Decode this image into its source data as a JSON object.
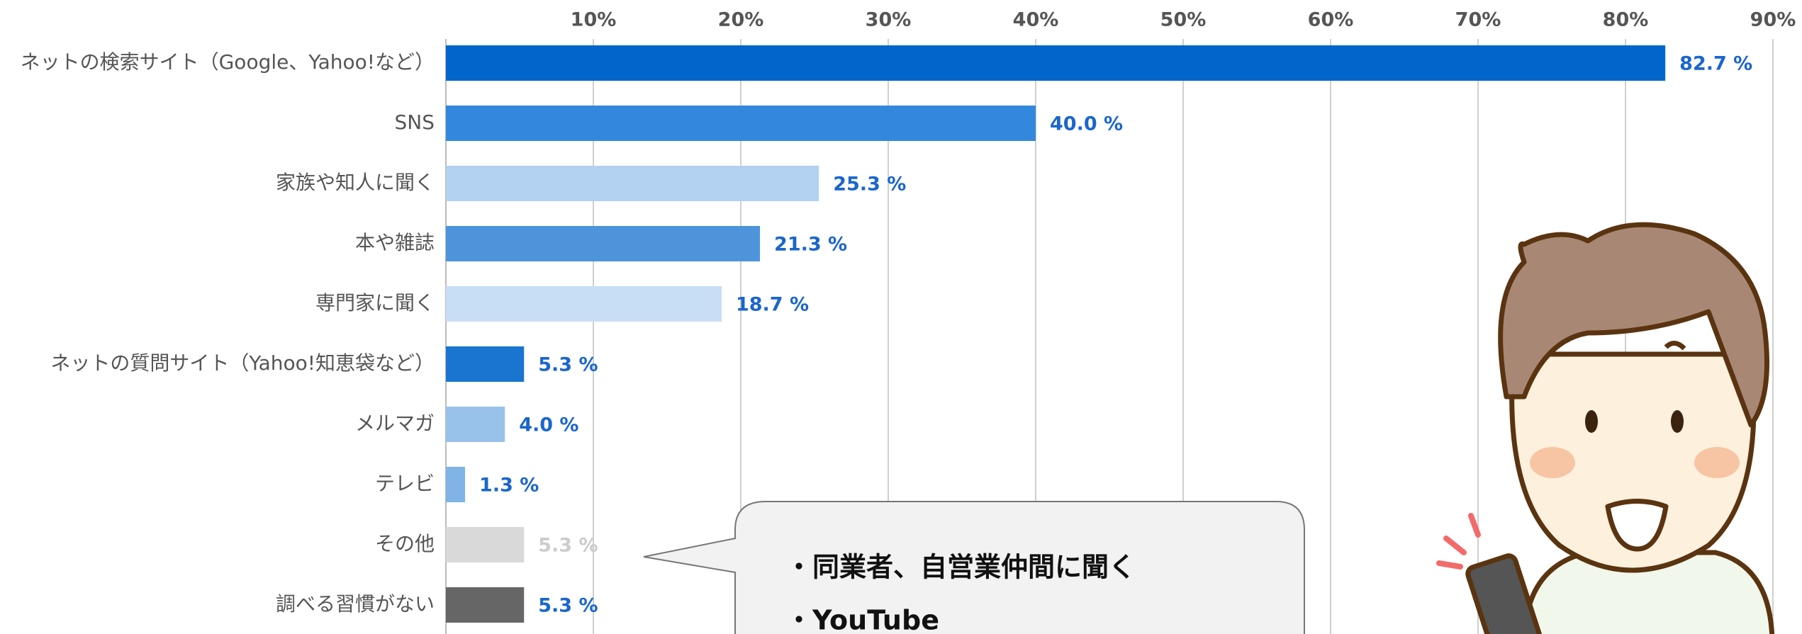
{
  "chart_data": {
    "type": "barh",
    "categories": [
      "ネットの検索サイト（Google、Yahoo!など）",
      "SNS",
      "家族や知人に聞く",
      "本や雑誌",
      "専門家に聞く",
      "ネットの質問サイト（Yahoo!知恵袋など）",
      "メルマガ",
      "テレビ",
      "その他",
      "調べる習慣がない"
    ],
    "values": [
      82.7,
      40.0,
      25.3,
      21.3,
      18.7,
      5.3,
      4.0,
      1.3,
      5.3,
      5.3
    ],
    "value_labels": [
      "82.7 %",
      "40.0 %",
      "25.3 %",
      "21.3 %",
      "18.7 %",
      "5.3 %",
      "4.0 %",
      "1.3 %",
      "5.3 %",
      "5.3 %"
    ],
    "colors": [
      "#0066cc",
      "#3388dd",
      "#b3d1f0",
      "#4d94db",
      "#c8def5",
      "#1a75d1",
      "#99c2eb",
      "#80b3e6",
      "#d9d9d9",
      "#666666"
    ],
    "value_label_colors": [
      "#1a66cc",
      "#1a66cc",
      "#1a66cc",
      "#1a66cc",
      "#1a66cc",
      "#1a66cc",
      "#1a66cc",
      "#1a66cc",
      "#cccccc",
      "#1a66cc"
    ],
    "xlim": [
      0,
      90
    ],
    "xticks": [
      {
        "value": 10,
        "label": "10%"
      },
      {
        "value": 20,
        "label": "20%"
      },
      {
        "value": 30,
        "label": "30%"
      },
      {
        "value": 40,
        "label": "40%"
      },
      {
        "value": 50,
        "label": "50%"
      },
      {
        "value": 60,
        "label": "60%"
      },
      {
        "value": 70,
        "label": "70%"
      },
      {
        "value": 80,
        "label": "80%"
      },
      {
        "value": 90,
        "label": "90%"
      }
    ],
    "grid": true,
    "annotations": [
      "・同業者、自営業仲間に聞く",
      "・YouTube"
    ]
  }
}
